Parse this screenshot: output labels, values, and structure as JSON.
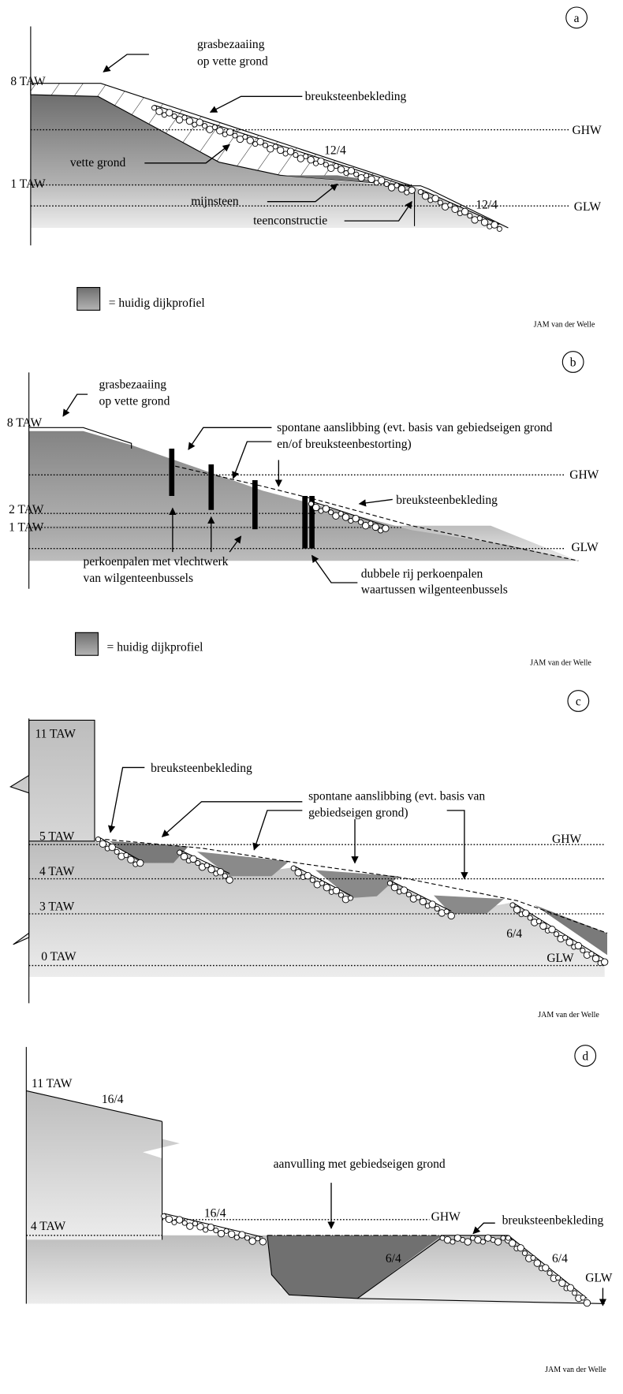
{
  "panels": [
    {
      "label": "a",
      "texts": [
        "8 TAW",
        "1 TAW",
        "GHW",
        "GLW",
        "grasbezaaiing",
        "op vette grond",
        "breuksteenbekleding",
        "vette grond",
        "mijnsteen",
        "teenconstructie",
        "12/4",
        "12/4"
      ],
      "legend": "= huidig dijkprofiel",
      "credit": "JAM van der Welle"
    },
    {
      "label": "b",
      "texts": [
        "8 TAW",
        "2 TAW",
        "1 TAW",
        "GHW",
        "GLW",
        "grasbezaaiing",
        "op vette grond",
        "spontane aanslibbing (evt. basis van gebiedseigen grond",
        "en/of breuksteenbestorting)",
        "breuksteenbekleding",
        "perkoenpalen met vlechtwerk",
        "van wilgenteenbussels",
        "dubbele rij perkoenpalen",
        "waartussen wilgenteenbussels"
      ],
      "legend": "= huidig dijkprofiel",
      "credit": "JAM van der Welle"
    },
    {
      "label": "c",
      "texts": [
        "11 TAW",
        "5 TAW",
        "4 TAW",
        "3 TAW",
        "0 TAW",
        "GHW",
        "GLW",
        "breuksteenbekleding",
        "spontane aanslibbing (evt. basis van",
        "gebiedseigen grond)",
        "6/4"
      ],
      "credit": "JAM van der Welle"
    },
    {
      "label": "d",
      "texts": [
        "11 TAW",
        "16/4",
        "4 TAW",
        "aanvulling met gebiedseigen grond",
        "16/4",
        "GHW",
        "breuksteenbekleding",
        "6/4",
        "6/4",
        "GLW"
      ],
      "credit": "JAM van der Welle"
    }
  ]
}
